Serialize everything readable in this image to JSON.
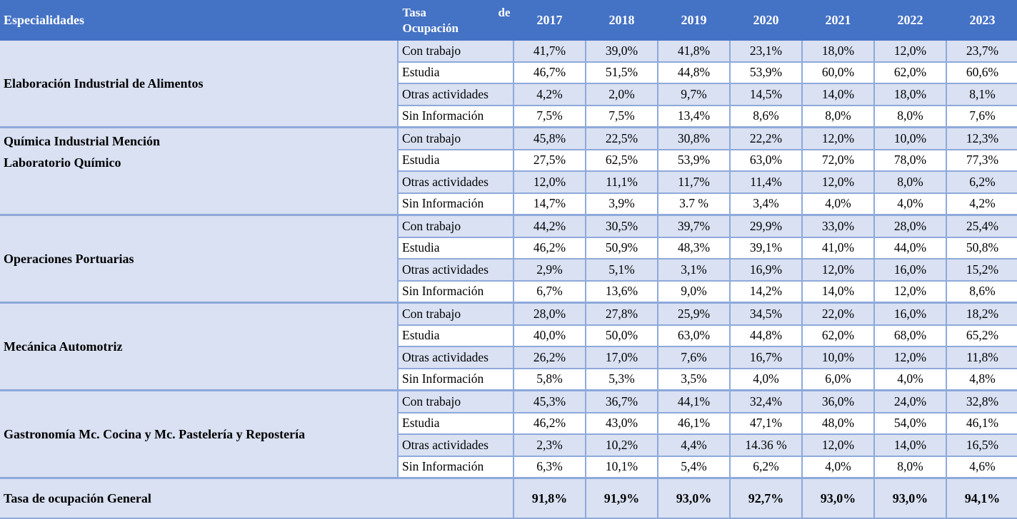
{
  "header": {
    "especialidades": "Especialidades",
    "tasa_line1_left": "Tasa",
    "tasa_line1_right": "de",
    "tasa_line2": "Ocupación",
    "years": [
      "2017",
      "2018",
      "2019",
      "2020",
      "2021",
      "2022",
      "2023"
    ]
  },
  "groups": [
    {
      "name_lines": [
        "Elaboración Industrial de Alimentos"
      ],
      "rows": [
        {
          "category": "Con trabajo",
          "values": [
            "41,7%",
            "39,0%",
            "41,8%",
            "23,1%",
            "18,0%",
            "12,0%",
            "23,7%"
          ]
        },
        {
          "category": "Estudia",
          "values": [
            "46,7%",
            "51,5%",
            "44,8%",
            "53,9%",
            "60,0%",
            "62,0%",
            "60,6%"
          ]
        },
        {
          "category": "Otras actividades",
          "values": [
            "4,2%",
            "2,0%",
            "9,7%",
            "14,5%",
            "14,0%",
            "18,0%",
            "8,1%"
          ]
        },
        {
          "category": "Sin Información",
          "values": [
            "7,5%",
            "7,5%",
            "13,4%",
            "8,6%",
            "8,0%",
            "8,0%",
            "7,6%"
          ]
        }
      ]
    },
    {
      "name_lines": [
        "Química Industrial Mención",
        "Laboratorio Químico"
      ],
      "rows": [
        {
          "category": "Con trabajo",
          "values": [
            "45,8%",
            "22,5%",
            "30,8%",
            "22,2%",
            "12,0%",
            "10,0%",
            "12,3%"
          ]
        },
        {
          "category": "Estudia",
          "values": [
            "27,5%",
            "62,5%",
            "53,9%",
            "63,0%",
            "72,0%",
            "78,0%",
            "77,3%"
          ]
        },
        {
          "category": "Otras actividades",
          "values": [
            "12,0%",
            "11,1%",
            "11,7%",
            "11,4%",
            "12,0%",
            "8,0%",
            "6,2%"
          ]
        },
        {
          "category": "Sin Información",
          "values": [
            "14,7%",
            "3,9%",
            "3.7 %",
            "3,4%",
            "4,0%",
            "4,0%",
            "4,2%"
          ]
        }
      ]
    },
    {
      "name_lines": [
        "Operaciones Portuarias"
      ],
      "rows": [
        {
          "category": "Con trabajo",
          "values": [
            "44,2%",
            "30,5%",
            "39,7%",
            "29,9%",
            "33,0%",
            "28,0%",
            "25,4%"
          ]
        },
        {
          "category": "Estudia",
          "values": [
            "46,2%",
            "50,9%",
            "48,3%",
            "39,1%",
            "41,0%",
            "44,0%",
            "50,8%"
          ]
        },
        {
          "category": "Otras actividades",
          "values": [
            "2,9%",
            "5,1%",
            "3,1%",
            "16,9%",
            "12,0%",
            "16,0%",
            "15,2%"
          ]
        },
        {
          "category": "Sin Información",
          "values": [
            "6,7%",
            "13,6%",
            "9,0%",
            "14,2%",
            "14,0%",
            "12,0%",
            "8,6%"
          ]
        }
      ]
    },
    {
      "name_lines": [
        "Mecánica Automotriz"
      ],
      "rows": [
        {
          "category": "Con trabajo",
          "values": [
            "28,0%",
            "27,8%",
            "25,9%",
            "34,5%",
            "22,0%",
            "16,0%",
            "18,2%"
          ]
        },
        {
          "category": "Estudia",
          "values": [
            "40,0%",
            "50,0%",
            "63,0%",
            "44,8%",
            "62,0%",
            "68,0%",
            "65,2%"
          ]
        },
        {
          "category": "Otras actividades",
          "values": [
            "26,2%",
            "17,0%",
            "7,6%",
            "16,7%",
            "10,0%",
            "12,0%",
            "11,8%"
          ]
        },
        {
          "category": "Sin Información",
          "values": [
            "5,8%",
            "5,3%",
            "3,5%",
            "4,0%",
            "6,0%",
            "4,0%",
            "4,8%"
          ]
        }
      ]
    },
    {
      "name_lines": [
        "Gastronomía Mc. Cocina y Mc. Pastelería y Repostería"
      ],
      "rows": [
        {
          "category": "Con trabajo",
          "values": [
            "45,3%",
            "36,7%",
            "44,1%",
            "32,4%",
            "36,0%",
            "24,0%",
            "32,8%"
          ]
        },
        {
          "category": "Estudia",
          "values": [
            "46,2%",
            "43,0%",
            "46,1%",
            "47,1%",
            "48,0%",
            "54,0%",
            "46,1%"
          ]
        },
        {
          "category": "Otras actividades",
          "values": [
            "2,3%",
            "10,2%",
            "4,4%",
            "14.36 %",
            "12,0%",
            "14,0%",
            "16,5%"
          ]
        },
        {
          "category": "Sin Información",
          "values": [
            "6,3%",
            "10,1%",
            "5,4%",
            "6,2%",
            "4,0%",
            "8,0%",
            "4,6%"
          ]
        }
      ]
    }
  ],
  "general": {
    "label": "Tasa de ocupación General",
    "values": [
      "91,8%",
      "91,9%",
      "93,0%",
      "92,7%",
      "93,0%",
      "93,0%",
      "94,1%"
    ]
  }
}
